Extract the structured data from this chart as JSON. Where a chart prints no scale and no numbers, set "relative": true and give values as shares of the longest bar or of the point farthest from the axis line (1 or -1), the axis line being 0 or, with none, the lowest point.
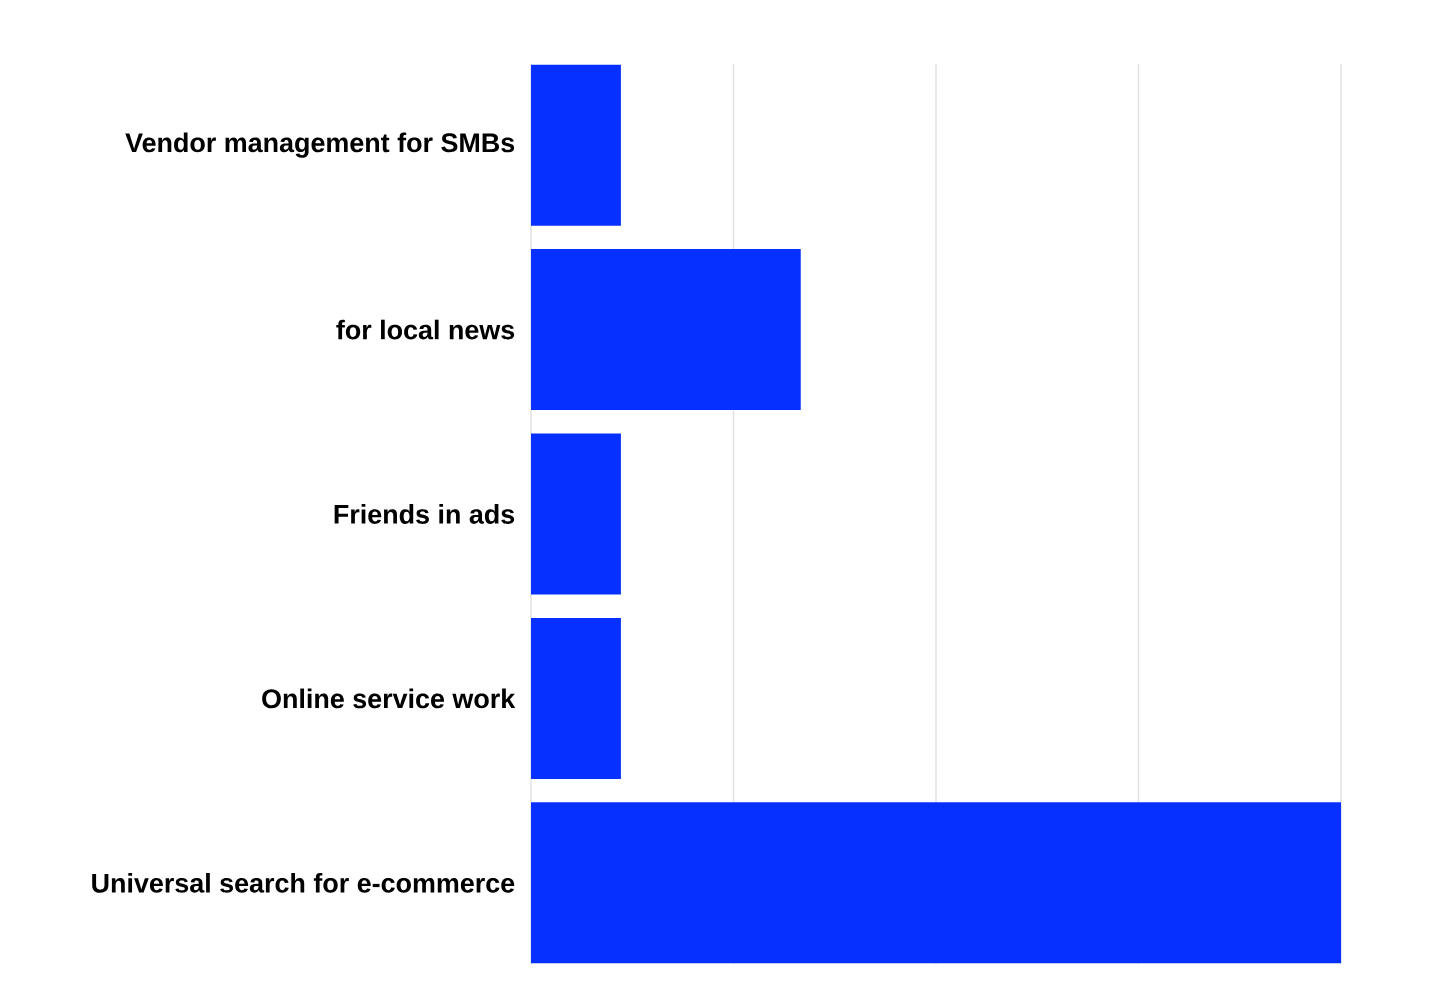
{
  "chart_data": {
    "type": "bar",
    "orientation": "horizontal",
    "relative": true,
    "categories": [
      "Vendor management for SMBs",
      "for local news",
      "Friends in ads",
      "Online service work",
      "Universal search for e-commerce"
    ],
    "values": [
      0.111,
      0.333,
      0.111,
      0.111,
      1
    ],
    "color": "#0530ff",
    "grid": "x",
    "tick_labels": "y"
  }
}
